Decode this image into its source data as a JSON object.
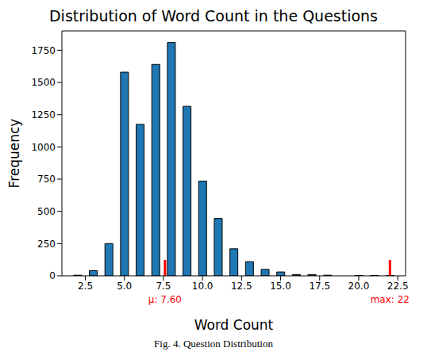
{
  "chart_data": {
    "type": "bar",
    "title": "Distribution of Word Count in the Questions",
    "x_label": "Word Count",
    "y_label": "Frequency",
    "caption": "Fig. 4.  Question Distribution",
    "x": [
      2,
      3,
      4,
      5,
      6,
      7,
      8,
      9,
      10,
      11,
      12,
      13,
      14,
      15,
      16,
      17,
      18,
      20,
      21,
      22
    ],
    "values": [
      5,
      40,
      250,
      1580,
      1175,
      1640,
      1810,
      1315,
      735,
      445,
      210,
      110,
      50,
      30,
      10,
      10,
      5,
      3,
      3,
      2
    ],
    "color": "#1f77b4",
    "xlim": [
      1.0,
      23.0
    ],
    "xticks": [
      2.5,
      {
        "value": 5,
        "label": "5.0"
      },
      7.5,
      {
        "value": 10,
        "label": "10.0"
      },
      12.5,
      {
        "value": 15,
        "label": "15.0"
      },
      17.5,
      {
        "value": 20,
        "label": "20.0"
      },
      22.5
    ],
    "ylim": [
      0,
      1900
    ],
    "yticks": [
      0,
      250,
      500,
      750,
      1000,
      1250,
      1500,
      1750
    ],
    "annotations": [
      {
        "x": 7.6,
        "text": "μ: 7.60",
        "color": "red"
      },
      {
        "x": 22,
        "text": "max: 22",
        "color": "red"
      }
    ],
    "grid": false
  }
}
